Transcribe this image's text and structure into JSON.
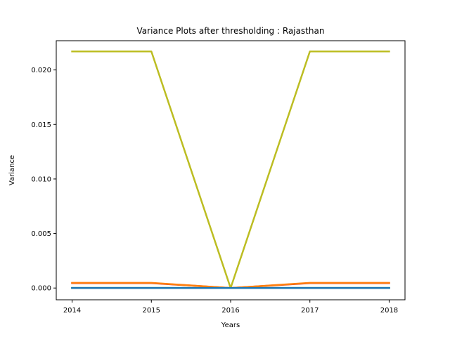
{
  "chart_data": {
    "type": "line",
    "title": "Variance Plots after thresholding : Rajasthan",
    "xlabel": "Years",
    "ylabel": "Variance",
    "x": [
      2014,
      2015,
      2016,
      2017,
      2018
    ],
    "x_tick_labels": [
      "2014",
      "2015",
      "2016",
      "2017",
      "2018"
    ],
    "y_ticks": [
      0.0,
      0.005,
      0.01,
      0.015,
      0.02
    ],
    "y_tick_labels": [
      "0.000",
      "0.005",
      "0.010",
      "0.015",
      "0.020"
    ],
    "xlim": [
      2013.8,
      2018.2
    ],
    "ylim": [
      -0.00108,
      0.02268
    ],
    "grid": false,
    "legend": "none",
    "series": [
      {
        "values": [
          0.0217,
          0.0217,
          0.0,
          0.0217,
          0.0217
        ],
        "color": "#bcbd22"
      },
      {
        "values": [
          0.00045,
          0.00045,
          0.0,
          0.00045,
          0.00045
        ],
        "color": "#d62728"
      },
      {
        "values": [
          0.00047,
          0.00047,
          0.0,
          0.00047,
          0.00047
        ],
        "color": "#ff7f0e"
      },
      {
        "values": [
          1e-05,
          1e-05,
          0.0,
          1e-05,
          1e-05
        ],
        "color": "#1f77b4"
      },
      {
        "values": [
          1e-05,
          1e-05,
          0.0,
          1e-05,
          1e-05
        ],
        "color": "#2ca02c"
      },
      {
        "values": [
          0.0,
          0.0,
          0.0,
          0.0,
          0.0
        ],
        "color": "#17becf"
      },
      {
        "values": [
          0.0,
          0.0,
          0.0,
          0.0,
          0.0
        ],
        "color": "#1f77b4"
      }
    ]
  }
}
